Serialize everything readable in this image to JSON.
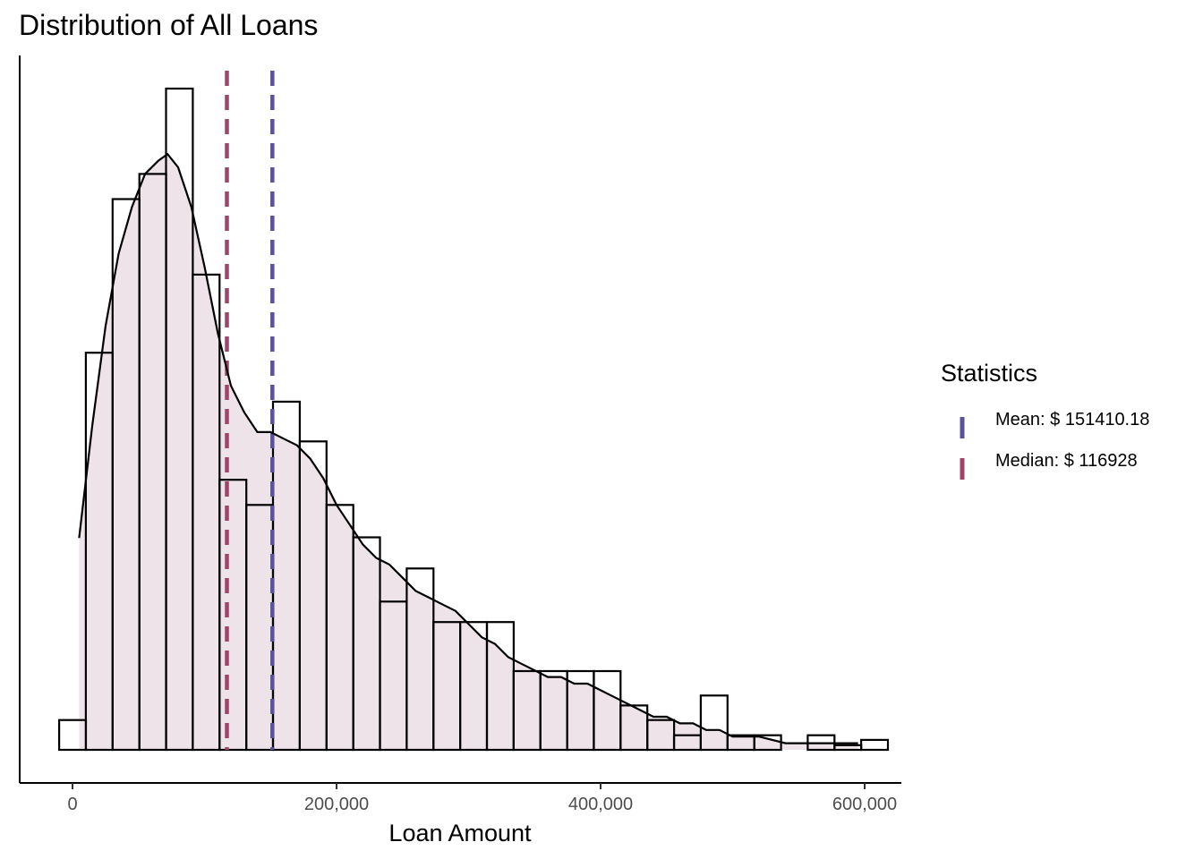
{
  "chart_data": {
    "type": "histogram",
    "title": "Distribution of All Loans",
    "xlabel": "Loan Amount",
    "ylabel": "",
    "xlim": [
      -25000,
      627000
    ],
    "ylim": [
      0,
      9.3e-06
    ],
    "x_ticks": [
      0,
      200000,
      400000,
      600000
    ],
    "x_tick_labels": [
      "0",
      "200,000",
      "400,000",
      "600,000"
    ],
    "y_ticks_shown": false,
    "grid": false,
    "bin_width": 20250,
    "bin_start": -10125,
    "bin_densities": [
      4.5e-07,
      6e-06,
      8.32e-06,
      8.7e-06,
      9.99e-06,
      7.18e-06,
      4.08e-06,
      3.7e-06,
      5.26e-06,
      4.66e-06,
      3.7e-06,
      3.21e-06,
      2.24e-06,
      2.74e-06,
      1.93e-06,
      1.93e-06,
      1.93e-06,
      1.19e-06,
      1.19e-06,
      1.19e-06,
      1.19e-06,
      6.7e-07,
      4.5e-07,
      2.2e-07,
      8.2e-07,
      2.2e-07,
      2.2e-07,
      0.0,
      2.2e-07,
      7e-08,
      1.5e-07
    ],
    "density_curve": {
      "x": [
        5000,
        15000,
        25000,
        35000,
        45000,
        55000,
        65000,
        72000,
        80000,
        90000,
        100000,
        110000,
        120000,
        130000,
        140000,
        150000,
        160000,
        170000,
        180000,
        190000,
        200000,
        210000,
        220000,
        230000,
        240000,
        250000,
        260000,
        270000,
        280000,
        290000,
        300000,
        310000,
        320000,
        330000,
        340000,
        350000,
        360000,
        370000,
        380000,
        390000,
        400000,
        410000,
        420000,
        430000,
        440000,
        450000,
        460000,
        470000,
        480000,
        490000,
        500000,
        520000,
        540000,
        560000,
        580000,
        595000
      ],
      "y": [
        3.2e-06,
        4.9e-06,
        6.4e-06,
        7.5e-06,
        8.2e-06,
        8.7e-06,
        8.9e-06,
        9e-06,
        8.8e-06,
        8.2e-06,
        7.3e-06,
        6.3e-06,
        5.5e-06,
        5.1e-06,
        4.8e-06,
        4.8e-06,
        4.7e-06,
        4.6e-06,
        4.4e-06,
        4.1e-06,
        3.7e-06,
        3.4e-06,
        3.1e-06,
        2.9e-06,
        2.8e-06,
        2.6e-06,
        2.4e-06,
        2.3e-06,
        2.2e-06,
        2.1e-06,
        1.9e-06,
        1.7e-06,
        1.6e-06,
        1.4e-06,
        1.3e-06,
        1.2e-06,
        1.1e-06,
        1.1e-06,
        1e-06,
        1e-06,
        9e-07,
        8e-07,
        7e-07,
        6e-07,
        5e-07,
        5e-07,
        4e-07,
        4e-07,
        3e-07,
        3e-07,
        2e-07,
        2e-07,
        1e-07,
        1e-07,
        1e-07,
        1e-07
      ]
    },
    "reference_lines": [
      {
        "name": "Mean: $ 151410.18",
        "x": 151410.18,
        "color": "#5b539a",
        "style": "dashed"
      },
      {
        "name": "Median: $ 116928",
        "x": 116928,
        "color": "#9e4569",
        "style": "dashed"
      }
    ],
    "legend": {
      "title": "Statistics",
      "placement": "right",
      "entries": [
        "Mean: $ 151410.18",
        "Median: $ 116928"
      ]
    },
    "colors": {
      "density_fill": "#efe3ea",
      "bar_outline": "#000000",
      "curve": "#000000",
      "mean": "#5b539a",
      "median": "#9e4569"
    }
  }
}
